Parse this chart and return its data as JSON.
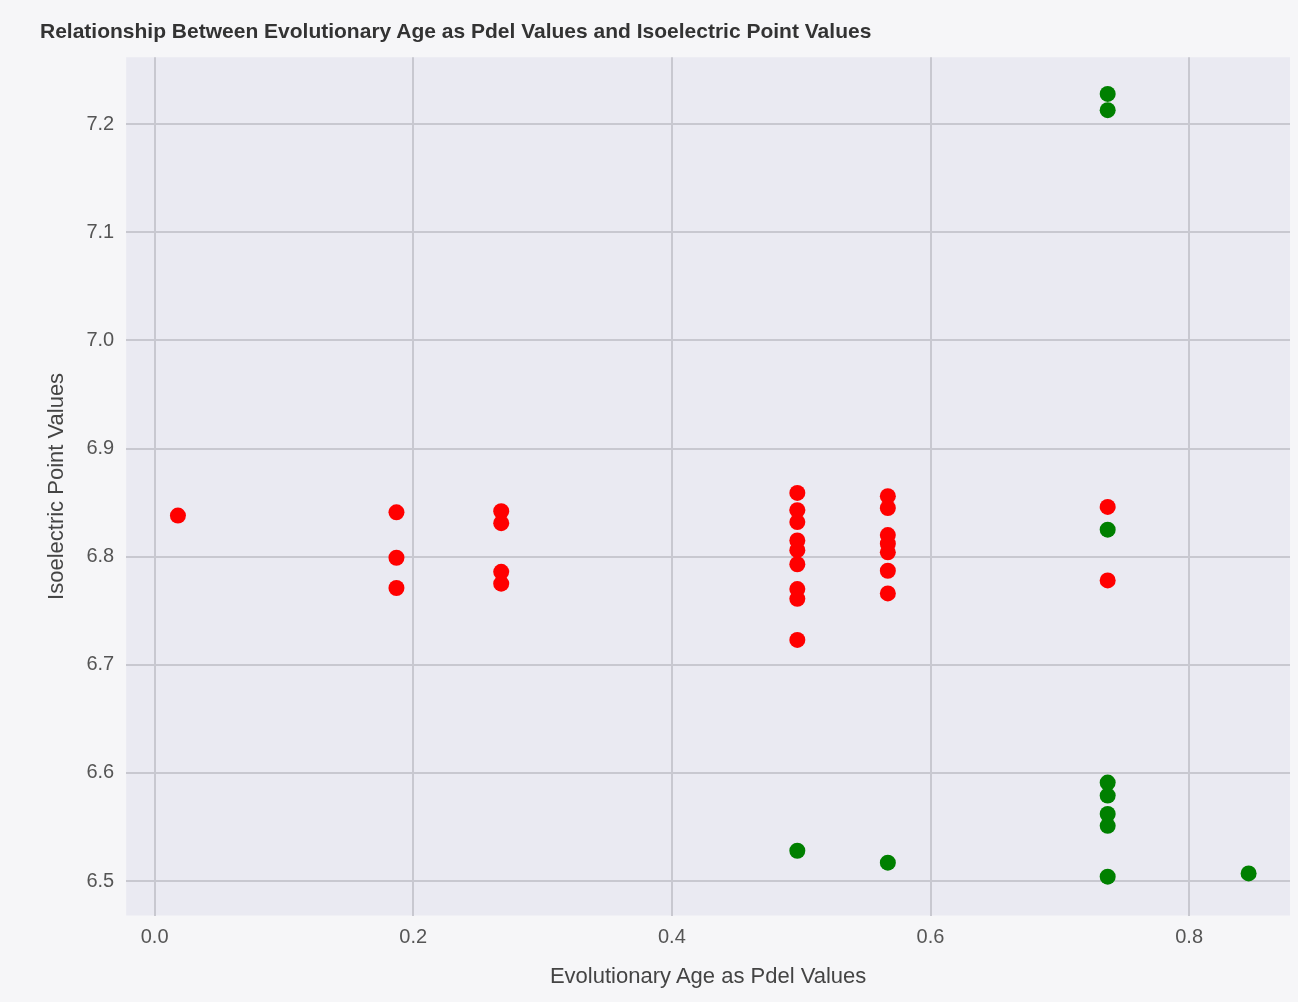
{
  "chart_data": {
    "type": "scatter",
    "title": "Relationship Between Evolutionary Age as Pdel Values and Isoelectric Point Values",
    "xlabel": "Evolutionary Age as Pdel Values",
    "ylabel": "Isoelectric Point Values",
    "xlim": [
      -0.022,
      0.878
    ],
    "ylim": [
      6.468,
      7.262
    ],
    "xticks": [
      {
        "value": 0,
        "label": "0.0"
      },
      0.2,
      0.4,
      0.6,
      0.8
    ],
    "yticks": [
      6.5,
      6.6,
      6.7,
      6.8,
      6.9,
      {
        "value": 7,
        "label": "7.0"
      },
      7.1,
      7.2
    ],
    "grid": true,
    "marker": "circle",
    "series": [
      {
        "color": "#ff0000",
        "x": [
          0.018,
          0.187,
          0.187,
          0.187,
          0.268,
          0.268,
          0.268,
          0.268,
          0.497,
          0.497,
          0.497,
          0.497,
          0.497,
          0.497,
          0.497,
          0.497,
          0.497,
          0.567,
          0.567,
          0.567,
          0.567,
          0.567,
          0.567,
          0.567,
          0.737,
          0.737
        ],
        "values": [
          6.838,
          6.841,
          6.799,
          6.771,
          6.842,
          6.831,
          6.786,
          6.775,
          6.859,
          6.843,
          6.832,
          6.815,
          6.806,
          6.793,
          6.77,
          6.761,
          6.723,
          6.856,
          6.845,
          6.82,
          6.812,
          6.804,
          6.787,
          6.766,
          6.846,
          6.778
        ]
      },
      {
        "color": "#008000",
        "x": [
          0.497,
          0.567,
          0.737,
          0.737,
          0.737,
          0.737,
          0.737,
          0.737,
          0.737,
          0.737,
          0.846
        ],
        "values": [
          6.528,
          6.517,
          7.228,
          7.213,
          6.825,
          6.591,
          6.579,
          6.562,
          6.551,
          6.504,
          6.507
        ]
      }
    ]
  }
}
